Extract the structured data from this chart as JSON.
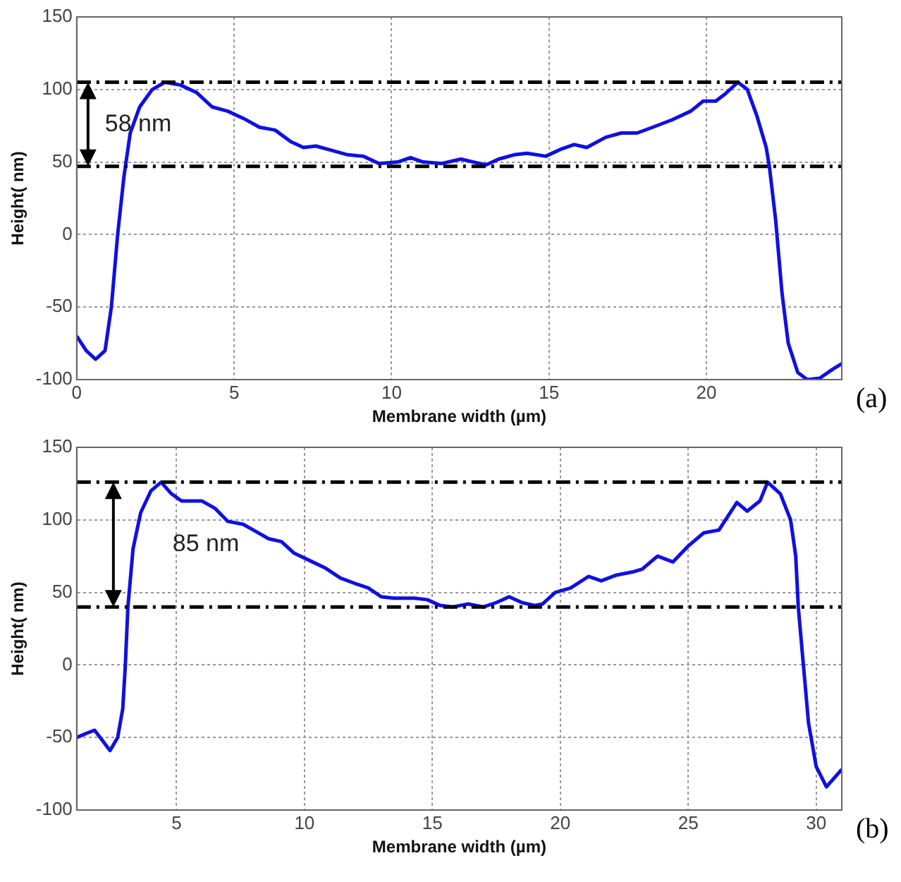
{
  "chart_data": [
    {
      "type": "line",
      "xlabel": "Membrane width (µm)",
      "ylabel": "Height( nm)",
      "xlim": [
        0,
        24.3
      ],
      "xticks": [
        0,
        5,
        10,
        15,
        20
      ],
      "ylim": [
        -100,
        150
      ],
      "yticks": [
        -100,
        -50,
        0,
        50,
        100,
        150
      ],
      "grid": true,
      "legend": false,
      "marker": "none",
      "line_style": "solid",
      "series": [
        {
          "color": "#1010e0",
          "x": [
            0,
            0.3,
            0.6,
            0.9,
            1.1,
            1.3,
            1.5,
            1.7,
            2.0,
            2.4,
            2.8,
            3.3,
            3.8,
            4.3,
            4.8,
            5.3,
            5.8,
            6.3,
            6.8,
            7.2,
            7.6,
            8.1,
            8.6,
            9.1,
            9.6,
            10.2,
            10.6,
            11.0,
            11.6,
            12.2,
            12.6,
            13.0,
            13.4,
            13.9,
            14.3,
            14.9,
            15.4,
            15.8,
            16.2,
            16.8,
            17.3,
            17.8,
            18.3,
            18.9,
            19.5,
            19.9,
            20.3,
            20.6,
            21.0,
            21.3,
            21.6,
            21.9,
            22.0,
            22.2,
            22.4,
            22.6,
            22.9,
            23.2,
            23.6,
            24.0,
            24.3
          ],
          "values": [
            -70,
            -80,
            -86,
            -80,
            -50,
            0,
            40,
            70,
            88,
            100,
            105,
            103,
            98,
            88,
            85,
            80,
            74,
            72,
            64,
            60,
            61,
            58,
            55,
            54,
            49,
            50,
            53,
            50,
            49,
            52,
            50,
            48,
            52,
            55,
            56,
            54,
            59,
            62,
            60,
            67,
            70,
            70,
            74,
            79,
            85,
            92,
            92,
            97,
            105,
            100,
            82,
            60,
            47,
            10,
            -40,
            -75,
            -95,
            -100,
            -99,
            -93,
            -89
          ]
        }
      ],
      "ref_lines": [
        {
          "axis": "y",
          "value": 105,
          "color": "#000000",
          "line_style": "dashed"
        },
        {
          "axis": "y",
          "value": 47,
          "color": "#000000",
          "line_style": "dashed"
        }
      ],
      "annotations": [
        "58 nm",
        "(a)"
      ]
    },
    {
      "type": "line",
      "xlabel": "Membrane width (µm)",
      "ylabel": "Height( nm)",
      "xlim": [
        1.1,
        31
      ],
      "xticks": [
        5,
        10,
        15,
        20,
        25,
        30
      ],
      "ylim": [
        -100,
        150
      ],
      "yticks": [
        -100,
        -50,
        0,
        50,
        100,
        150
      ],
      "grid": true,
      "legend": false,
      "marker": "none",
      "line_style": "solid",
      "series": [
        {
          "color": "#1010e0",
          "x": [
            1.1,
            1.5,
            1.8,
            2.1,
            2.4,
            2.7,
            2.9,
            3.0,
            3.1,
            3.3,
            3.6,
            4.0,
            4.4,
            4.8,
            5.2,
            6.0,
            6.5,
            7.0,
            7.6,
            8.0,
            8.6,
            9.1,
            9.6,
            10.2,
            10.8,
            11.4,
            12.0,
            12.5,
            13.0,
            13.5,
            14.3,
            14.8,
            15.3,
            15.8,
            16.4,
            17.0,
            17.5,
            18.0,
            18.5,
            19.0,
            19.3,
            19.8,
            20.4,
            21.1,
            21.6,
            22.2,
            22.8,
            23.2,
            23.8,
            24.4,
            25.0,
            25.6,
            26.2,
            26.9,
            27.3,
            27.8,
            28.1,
            28.6,
            29.0,
            29.2,
            29.3,
            29.5,
            29.7,
            30.0,
            30.4,
            30.6,
            31.0
          ],
          "values": [
            -50,
            -47,
            -45,
            -52,
            -59,
            -50,
            -30,
            0,
            40,
            80,
            105,
            120,
            126,
            118,
            113,
            113,
            108,
            99,
            97,
            93,
            87,
            85,
            77,
            72,
            67,
            60,
            56,
            53,
            47,
            46,
            46,
            45,
            41,
            40,
            42,
            40,
            43,
            47,
            43,
            41,
            42,
            50,
            53,
            61,
            58,
            62,
            64,
            66,
            75,
            71,
            82,
            91,
            93,
            112,
            106,
            113,
            126,
            118,
            100,
            75,
            40,
            0,
            -40,
            -70,
            -84,
            -80,
            -72
          ]
        }
      ],
      "ref_lines": [
        {
          "axis": "y",
          "value": 126,
          "color": "#000000",
          "line_style": "dashed"
        },
        {
          "axis": "y",
          "value": 40,
          "color": "#000000",
          "line_style": "dashed"
        }
      ],
      "annotations": [
        "85 nm",
        "(b)"
      ]
    }
  ]
}
